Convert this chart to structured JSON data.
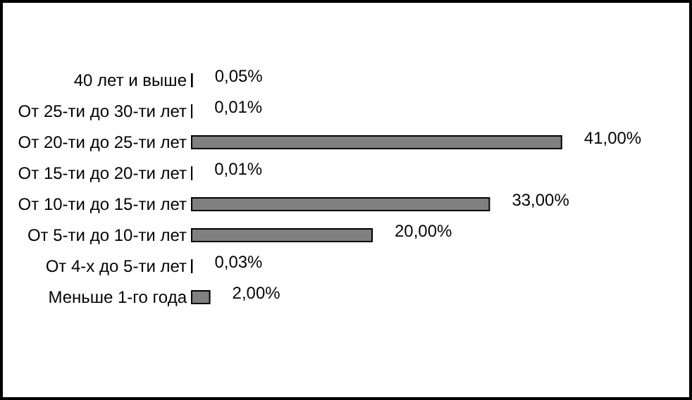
{
  "chart_data": {
    "type": "bar",
    "orientation": "horizontal",
    "categories": [
      "40 лет и выше",
      "От 25-ти до 30-ти лет",
      "От 20-ти до 25-ти лет",
      "От 15-ти до 20-ти лет",
      "От 10-ти до 15-ти лет",
      "От 5-ти до 10-ти лет",
      "От 4-х до 5-ти лет",
      "Меньше 1-го года"
    ],
    "values": [
      0.05,
      0.01,
      41,
      0.01,
      33,
      20,
      0.03,
      2
    ],
    "value_labels": [
      "0,05%",
      "0,01%",
      "41,00%",
      "0,01%",
      "33,00%",
      "20,00%",
      "0,03%",
      "2,00%"
    ],
    "color": "#808080"
  }
}
